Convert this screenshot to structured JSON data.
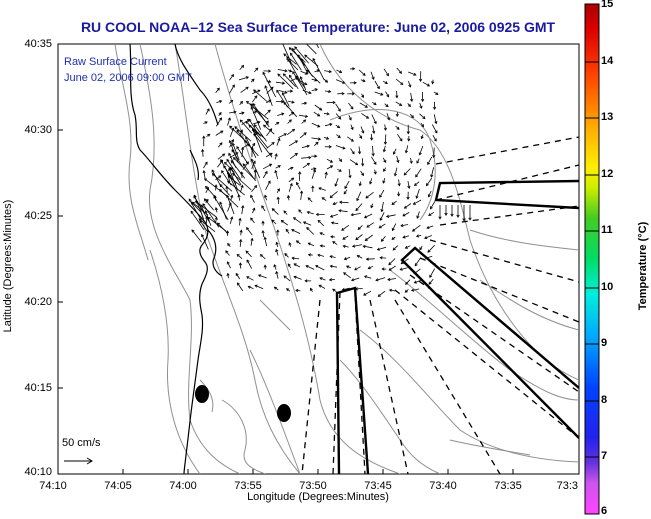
{
  "title": "RU COOL  NOAA–12  Sea Surface Temperature:  June 02, 2006 0925 GMT",
  "inset": {
    "line1": "Raw Surface Current",
    "line2": "June 02, 2006 09:00 GMT"
  },
  "axes": {
    "xlabel": "Longitude (Degrees:Minutes)",
    "ylabel": "Latitude (Degrees:Minutes)",
    "xticks": [
      "74:10",
      "74:05",
      "74:00",
      "73:55",
      "73:50",
      "73:45",
      "73:40",
      "73:35",
      "73:3"
    ],
    "yticks": [
      "40:35",
      "40:30",
      "40:25",
      "40:20",
      "40:15",
      "40:10"
    ]
  },
  "scale_label": "50 cm/s",
  "colorbar": {
    "title": "Temperature (°C)",
    "ticks": [
      "15",
      "14",
      "13",
      "12",
      "11",
      "10",
      "9",
      "8",
      "7",
      "6"
    ],
    "min": 6,
    "max": 15
  },
  "colors": {
    "title": "#1a1aa0",
    "coast": "#000000",
    "contour": "#909090",
    "vector": "#000000"
  }
}
